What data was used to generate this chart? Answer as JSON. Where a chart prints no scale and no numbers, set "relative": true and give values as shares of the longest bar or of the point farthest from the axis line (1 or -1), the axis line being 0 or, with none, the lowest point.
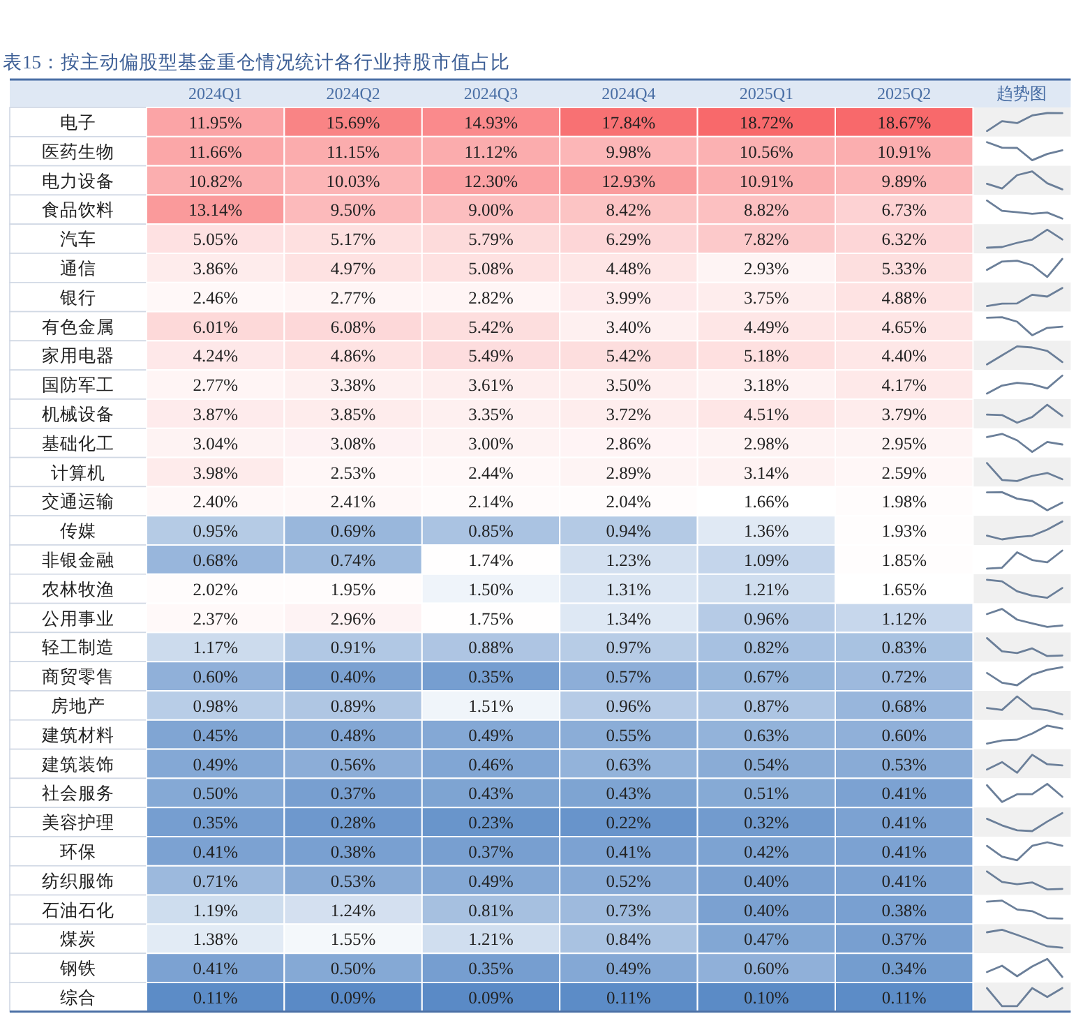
{
  "chart_data": [
    {
      "type": "heatmap",
      "title": "表15：按主动偏股型基金重仓情况统计各行业持股市值占比",
      "annotations": [
        "趋势图"
      ],
      "categories": [
        "2024Q1",
        "2024Q2",
        "2024Q3",
        "2024Q4",
        "2025Q1",
        "2025Q2"
      ],
      "y_categories": [
        "电子",
        "医药生物",
        "电力设备",
        "食品饮料",
        "汽车",
        "通信",
        "银行",
        "有色金属",
        "家用电器",
        "国防军工",
        "机械设备",
        "基础化工",
        "计算机",
        "交通运输",
        "传媒",
        "非银金融",
        "农林牧渔",
        "公用事业",
        "轻工制造",
        "商贸零售",
        "房地产",
        "建筑材料",
        "建筑装饰",
        "社会服务",
        "美容护理",
        "环保",
        "纺织服饰",
        "石油石化",
        "煤炭",
        "钢铁",
        "综合"
      ],
      "cells": [
        [
          11.95,
          15.69,
          14.93,
          17.84,
          18.72,
          18.67
        ],
        [
          11.66,
          11.15,
          11.12,
          9.98,
          10.56,
          10.91
        ],
        [
          10.82,
          10.03,
          12.3,
          12.93,
          10.91,
          9.89
        ],
        [
          13.14,
          9.5,
          9.0,
          8.42,
          8.82,
          6.73
        ],
        [
          5.05,
          5.17,
          5.79,
          6.29,
          7.82,
          6.32
        ],
        [
          3.86,
          4.97,
          5.08,
          4.48,
          2.93,
          5.33
        ],
        [
          2.46,
          2.77,
          2.82,
          3.99,
          3.75,
          4.88
        ],
        [
          6.01,
          6.08,
          5.42,
          3.4,
          4.49,
          4.65
        ],
        [
          4.24,
          4.86,
          5.49,
          5.42,
          5.18,
          4.4
        ],
        [
          2.77,
          3.38,
          3.61,
          3.5,
          3.18,
          4.17
        ],
        [
          3.87,
          3.85,
          3.35,
          3.72,
          4.51,
          3.79
        ],
        [
          3.04,
          3.08,
          3.0,
          2.86,
          2.98,
          2.95
        ],
        [
          3.98,
          2.53,
          2.44,
          2.89,
          3.14,
          2.59
        ],
        [
          2.4,
          2.41,
          2.14,
          2.04,
          1.66,
          1.98
        ],
        [
          0.95,
          0.69,
          0.85,
          0.94,
          1.36,
          1.93
        ],
        [
          0.68,
          0.74,
          1.74,
          1.23,
          1.09,
          1.85
        ],
        [
          2.02,
          1.95,
          1.5,
          1.31,
          1.21,
          1.65
        ],
        [
          2.37,
          2.96,
          1.75,
          1.34,
          0.96,
          1.12
        ],
        [
          1.17,
          0.91,
          0.88,
          0.97,
          0.82,
          0.83
        ],
        [
          0.6,
          0.4,
          0.35,
          0.57,
          0.67,
          0.72
        ],
        [
          0.98,
          0.89,
          1.51,
          0.96,
          0.87,
          0.68
        ],
        [
          0.45,
          0.48,
          0.49,
          0.55,
          0.63,
          0.6
        ],
        [
          0.49,
          0.56,
          0.46,
          0.63,
          0.54,
          0.53
        ],
        [
          0.5,
          0.37,
          0.43,
          0.43,
          0.51,
          0.41
        ],
        [
          0.35,
          0.28,
          0.23,
          0.22,
          0.32,
          0.41
        ],
        [
          0.41,
          0.38,
          0.37,
          0.41,
          0.42,
          0.41
        ],
        [
          0.71,
          0.53,
          0.49,
          0.52,
          0.4,
          0.41
        ],
        [
          1.19,
          1.24,
          0.81,
          0.73,
          0.4,
          0.38
        ],
        [
          1.38,
          1.55,
          1.21,
          0.84,
          0.47,
          0.37
        ],
        [
          0.41,
          0.5,
          0.35,
          0.49,
          0.6,
          0.34
        ],
        [
          0.11,
          0.09,
          0.09,
          0.11,
          0.1,
          0.11
        ]
      ],
      "cell_labels": [
        [
          "11.95%",
          "15.69%",
          "14.93%",
          "17.84%",
          "18.72%",
          "18.67%"
        ],
        [
          "11.66%",
          "11.15%",
          "11.12%",
          "9.98%",
          "10.56%",
          "10.91%"
        ],
        [
          "10.82%",
          "10.03%",
          "12.30%",
          "12.93%",
          "10.91%",
          "9.89%"
        ],
        [
          "13.14%",
          "9.50%",
          "9.00%",
          "8.42%",
          "8.82%",
          "6.73%"
        ],
        [
          "5.05%",
          "5.17%",
          "5.79%",
          "6.29%",
          "7.82%",
          "6.32%"
        ],
        [
          "3.86%",
          "4.97%",
          "5.08%",
          "4.48%",
          "2.93%",
          "5.33%"
        ],
        [
          "2.46%",
          "2.77%",
          "2.82%",
          "3.99%",
          "3.75%",
          "4.88%"
        ],
        [
          "6.01%",
          "6.08%",
          "5.42%",
          "3.40%",
          "4.49%",
          "4.65%"
        ],
        [
          "4.24%",
          "4.86%",
          "5.49%",
          "5.42%",
          "5.18%",
          "4.40%"
        ],
        [
          "2.77%",
          "3.38%",
          "3.61%",
          "3.50%",
          "3.18%",
          "4.17%"
        ],
        [
          "3.87%",
          "3.85%",
          "3.35%",
          "3.72%",
          "4.51%",
          "3.79%"
        ],
        [
          "3.04%",
          "3.08%",
          "3.00%",
          "2.86%",
          "2.98%",
          "2.95%"
        ],
        [
          "3.98%",
          "2.53%",
          "2.44%",
          "2.89%",
          "3.14%",
          "2.59%"
        ],
        [
          "2.40%",
          "2.41%",
          "2.14%",
          "2.04%",
          "1.66%",
          "1.98%"
        ],
        [
          "0.95%",
          "0.69%",
          "0.85%",
          "0.94%",
          "1.36%",
          "1.93%"
        ],
        [
          "0.68%",
          "0.74%",
          "1.74%",
          "1.23%",
          "1.09%",
          "1.85%"
        ],
        [
          "2.02%",
          "1.95%",
          "1.50%",
          "1.31%",
          "1.21%",
          "1.65%"
        ],
        [
          "2.37%",
          "2.96%",
          "1.75%",
          "1.34%",
          "0.96%",
          "1.12%"
        ],
        [
          "1.17%",
          "0.91%",
          "0.88%",
          "0.97%",
          "0.82%",
          "0.83%"
        ],
        [
          "0.60%",
          "0.40%",
          "0.35%",
          "0.57%",
          "0.67%",
          "0.72%"
        ],
        [
          "0.98%",
          "0.89%",
          "1.51%",
          "0.96%",
          "0.87%",
          "0.68%"
        ],
        [
          "0.45%",
          "0.48%",
          "0.49%",
          "0.55%",
          "0.63%",
          "0.60%"
        ],
        [
          "0.49%",
          "0.56%",
          "0.46%",
          "0.63%",
          "0.54%",
          "0.53%"
        ],
        [
          "0.50%",
          "0.37%",
          "0.43%",
          "0.43%",
          "0.51%",
          "0.41%"
        ],
        [
          "0.35%",
          "0.28%",
          "0.23%",
          "0.22%",
          "0.32%",
          "0.41%"
        ],
        [
          "0.41%",
          "0.38%",
          "0.37%",
          "0.41%",
          "0.42%",
          "0.41%"
        ],
        [
          "0.71%",
          "0.53%",
          "0.49%",
          "0.52%",
          "0.40%",
          "0.41%"
        ],
        [
          "1.19%",
          "1.24%",
          "0.81%",
          "0.73%",
          "0.40%",
          "0.38%"
        ],
        [
          "1.38%",
          "1.55%",
          "1.21%",
          "0.84%",
          "0.47%",
          "0.37%"
        ],
        [
          "0.41%",
          "0.50%",
          "0.35%",
          "0.49%",
          "0.60%",
          "0.34%"
        ],
        [
          "0.11%",
          "0.09%",
          "0.09%",
          "0.11%",
          "0.10%",
          "0.11%"
        ]
      ]
    },
    {
      "type": "line",
      "relative": true,
      "categories": [
        null,
        null,
        null,
        null,
        null,
        null
      ],
      "series": [
        {
          "color": "#6b7f99",
          "values": [
            0,
            0.55,
            0.44,
            0.87,
            1,
            0.99
          ]
        }
      ]
    },
    {
      "type": "line",
      "relative": true,
      "categories": [
        null,
        null,
        null,
        null,
        null,
        null
      ],
      "series": [
        {
          "color": "#6b7f99",
          "values": [
            1,
            0.7,
            0.68,
            0,
            0.35,
            0.55
          ]
        }
      ]
    },
    {
      "type": "line",
      "relative": true,
      "categories": [
        null,
        null,
        null,
        null,
        null,
        null
      ],
      "series": [
        {
          "color": "#6b7f99",
          "values": [
            0.31,
            0.05,
            0.79,
            1,
            0.34,
            0
          ]
        }
      ]
    },
    {
      "type": "line",
      "relative": true,
      "categories": [
        null,
        null,
        null,
        null,
        null,
        null
      ],
      "series": [
        {
          "color": "#6b7f99",
          "values": [
            1,
            0.43,
            0.35,
            0.26,
            0.33,
            0
          ]
        }
      ]
    },
    {
      "type": "line",
      "relative": true,
      "categories": [
        null,
        null,
        null,
        null,
        null,
        null
      ],
      "series": [
        {
          "color": "#6b7f99",
          "values": [
            0,
            0.04,
            0.27,
            0.45,
            1,
            0.46
          ]
        }
      ]
    },
    {
      "type": "line",
      "relative": true,
      "categories": [
        null,
        null,
        null,
        null,
        null,
        null
      ],
      "series": [
        {
          "color": "#6b7f99",
          "values": [
            0.39,
            0.85,
            0.9,
            0.65,
            0,
            1
          ]
        }
      ]
    },
    {
      "type": "line",
      "relative": true,
      "categories": [
        null,
        null,
        null,
        null,
        null,
        null
      ],
      "series": [
        {
          "color": "#6b7f99",
          "values": [
            0,
            0.13,
            0.15,
            0.63,
            0.53,
            1
          ]
        }
      ]
    },
    {
      "type": "line",
      "relative": true,
      "categories": [
        null,
        null,
        null,
        null,
        null,
        null
      ],
      "series": [
        {
          "color": "#6b7f99",
          "values": [
            0.97,
            1,
            0.75,
            0,
            0.41,
            0.47
          ]
        }
      ]
    },
    {
      "type": "line",
      "relative": true,
      "categories": [
        null,
        null,
        null,
        null,
        null,
        null
      ],
      "series": [
        {
          "color": "#6b7f99",
          "values": [
            0,
            0.5,
            1,
            0.94,
            0.75,
            0.13
          ]
        }
      ]
    },
    {
      "type": "line",
      "relative": true,
      "categories": [
        null,
        null,
        null,
        null,
        null,
        null
      ],
      "series": [
        {
          "color": "#6b7f99",
          "values": [
            0,
            0.44,
            0.6,
            0.52,
            0.29,
            1
          ]
        }
      ]
    },
    {
      "type": "line",
      "relative": true,
      "categories": [
        null,
        null,
        null,
        null,
        null,
        null
      ],
      "series": [
        {
          "color": "#6b7f99",
          "values": [
            0.45,
            0.43,
            0,
            0.32,
            1,
            0.38
          ]
        }
      ]
    },
    {
      "type": "line",
      "relative": true,
      "categories": [
        null,
        null,
        null,
        null,
        null,
        null
      ],
      "series": [
        {
          "color": "#6b7f99",
          "values": [
            0.82,
            1,
            0.64,
            0,
            0.55,
            0.41
          ]
        }
      ]
    },
    {
      "type": "line",
      "relative": true,
      "categories": [
        null,
        null,
        null,
        null,
        null,
        null
      ],
      "series": [
        {
          "color": "#6b7f99",
          "values": [
            1,
            0.06,
            0,
            0.29,
            0.45,
            0.1
          ]
        }
      ]
    },
    {
      "type": "line",
      "relative": true,
      "categories": [
        null,
        null,
        null,
        null,
        null,
        null
      ],
      "series": [
        {
          "color": "#6b7f99",
          "values": [
            0.99,
            1,
            0.64,
            0.51,
            0,
            0.43
          ]
        }
      ]
    },
    {
      "type": "line",
      "relative": true,
      "categories": [
        null,
        null,
        null,
        null,
        null,
        null
      ],
      "series": [
        {
          "color": "#6b7f99",
          "values": [
            0.21,
            0,
            0.13,
            0.2,
            0.54,
            1
          ]
        }
      ]
    },
    {
      "type": "line",
      "relative": true,
      "categories": [
        null,
        null,
        null,
        null,
        null,
        null
      ],
      "series": [
        {
          "color": "#6b7f99",
          "values": [
            0,
            0.05,
            0.91,
            0.47,
            0.35,
            1
          ]
        }
      ]
    },
    {
      "type": "line",
      "relative": true,
      "categories": [
        null,
        null,
        null,
        null,
        null,
        null
      ],
      "series": [
        {
          "color": "#6b7f99",
          "values": [
            1,
            0.91,
            0.36,
            0.12,
            0,
            0.54
          ]
        }
      ]
    },
    {
      "type": "line",
      "relative": true,
      "categories": [
        null,
        null,
        null,
        null,
        null,
        null
      ],
      "series": [
        {
          "color": "#6b7f99",
          "values": [
            0.71,
            1,
            0.4,
            0.19,
            0,
            0.08
          ]
        }
      ]
    },
    {
      "type": "line",
      "relative": true,
      "categories": [
        null,
        null,
        null,
        null,
        null,
        null
      ],
      "series": [
        {
          "color": "#6b7f99",
          "values": [
            1,
            0.26,
            0.17,
            0.43,
            0,
            0.03
          ]
        }
      ]
    },
    {
      "type": "line",
      "relative": true,
      "categories": [
        null,
        null,
        null,
        null,
        null,
        null
      ],
      "series": [
        {
          "color": "#6b7f99",
          "values": [
            0.68,
            0.14,
            0,
            0.59,
            0.86,
            1
          ]
        }
      ]
    },
    {
      "type": "line",
      "relative": true,
      "categories": [
        null,
        null,
        null,
        null,
        null,
        null
      ],
      "series": [
        {
          "color": "#6b7f99",
          "values": [
            0.36,
            0.25,
            1,
            0.34,
            0.23,
            0
          ]
        }
      ]
    },
    {
      "type": "line",
      "relative": true,
      "categories": [
        null,
        null,
        null,
        null,
        null,
        null
      ],
      "series": [
        {
          "color": "#6b7f99",
          "values": [
            0,
            0.17,
            0.22,
            0.56,
            1,
            0.83
          ]
        }
      ]
    },
    {
      "type": "line",
      "relative": true,
      "categories": [
        null,
        null,
        null,
        null,
        null,
        null
      ],
      "series": [
        {
          "color": "#6b7f99",
          "values": [
            0.18,
            0.59,
            0,
            1,
            0.47,
            0.41
          ]
        }
      ]
    },
    {
      "type": "line",
      "relative": true,
      "categories": [
        null,
        null,
        null,
        null,
        null,
        null
      ],
      "series": [
        {
          "color": "#6b7f99",
          "values": [
            0.93,
            0,
            0.43,
            0.43,
            1,
            0.29
          ]
        }
      ]
    },
    {
      "type": "line",
      "relative": true,
      "categories": [
        null,
        null,
        null,
        null,
        null,
        null
      ],
      "series": [
        {
          "color": "#6b7f99",
          "values": [
            0.68,
            0.32,
            0.05,
            0,
            0.53,
            1
          ]
        }
      ]
    },
    {
      "type": "line",
      "relative": true,
      "categories": [
        null,
        null,
        null,
        null,
        null,
        null
      ],
      "series": [
        {
          "color": "#6b7f99",
          "values": [
            0.8,
            0.2,
            0,
            0.8,
            1,
            0.8
          ]
        }
      ]
    },
    {
      "type": "line",
      "relative": true,
      "categories": [
        null,
        null,
        null,
        null,
        null,
        null
      ],
      "series": [
        {
          "color": "#6b7f99",
          "values": [
            1,
            0.42,
            0.29,
            0.39,
            0,
            0.03
          ]
        }
      ]
    },
    {
      "type": "line",
      "relative": true,
      "categories": [
        null,
        null,
        null,
        null,
        null,
        null
      ],
      "series": [
        {
          "color": "#6b7f99",
          "values": [
            0.94,
            1,
            0.5,
            0.41,
            0.02,
            0
          ]
        }
      ]
    },
    {
      "type": "line",
      "relative": true,
      "categories": [
        null,
        null,
        null,
        null,
        null,
        null
      ],
      "series": [
        {
          "color": "#6b7f99",
          "values": [
            0.86,
            1,
            0.71,
            0.4,
            0.08,
            0
          ]
        }
      ]
    },
    {
      "type": "line",
      "relative": true,
      "categories": [
        null,
        null,
        null,
        null,
        null,
        null
      ],
      "series": [
        {
          "color": "#6b7f99",
          "values": [
            0.27,
            0.62,
            0.04,
            0.58,
            1,
            0
          ]
        }
      ]
    },
    {
      "type": "line",
      "relative": true,
      "categories": [
        null,
        null,
        null,
        null,
        null,
        null
      ],
      "series": [
        {
          "color": "#6b7f99",
          "values": [
            1,
            0,
            0,
            1,
            0.5,
            1
          ]
        }
      ]
    }
  ]
}
